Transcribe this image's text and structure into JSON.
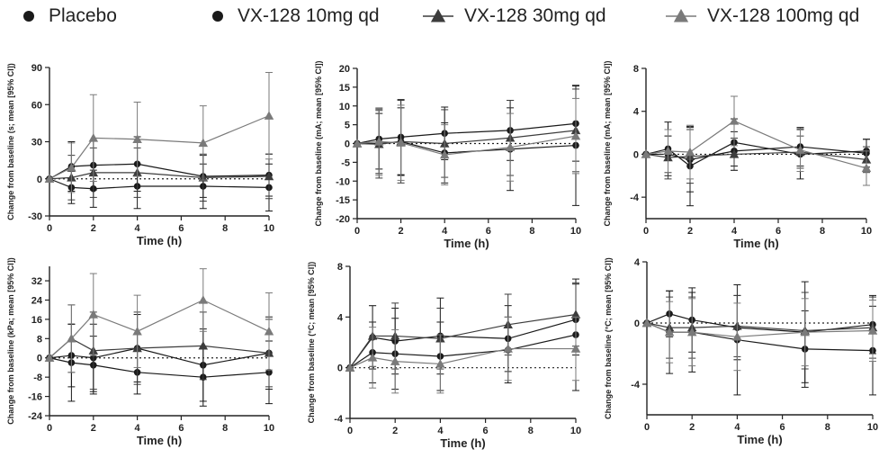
{
  "legend": {
    "items": [
      {
        "label": "Placebo",
        "color": "#1a1a1a",
        "marker": "circle-filled",
        "line": false
      },
      {
        "label": "VX-128 10mg qd",
        "color": "#1a1a1a",
        "marker": "circle-filled",
        "line": false
      },
      {
        "label": "VX-128 30mg qd",
        "color": "#3c3c3c",
        "marker": "triangle",
        "line": true
      },
      {
        "label": "VX-128 100mg qd",
        "color": "#7a7a7a",
        "marker": "triangle",
        "line": true
      }
    ]
  },
  "chart_data": [
    {
      "type": "line",
      "ylabel": "Change from baseline (s; mean [95% CI])",
      "xlabel": "Time (h)",
      "x": [
        0,
        1,
        2,
        4,
        7,
        10
      ],
      "xticks": [
        0,
        2,
        4,
        6,
        8,
        10
      ],
      "yticks": [
        -30,
        0,
        30,
        60,
        90
      ],
      "xlim": [
        0,
        10
      ],
      "ylim": [
        -30,
        90
      ],
      "reference_line": 0,
      "grid": false,
      "series": [
        {
          "color": "#1a1a1a",
          "marker": "circle",
          "values": [
            0,
            -7,
            -8,
            -6,
            -6,
            -7
          ],
          "err": [
            0,
            13,
            15,
            18,
            18,
            19
          ]
        },
        {
          "color": "#1a1a1a",
          "marker": "circle",
          "values": [
            0,
            10,
            11,
            12,
            2,
            3
          ],
          "err": [
            0,
            20,
            20,
            22,
            17,
            17
          ]
        },
        {
          "color": "#3c3c3c",
          "marker": "triangle",
          "values": [
            0,
            1,
            5,
            5,
            1,
            2
          ],
          "err": [
            0,
            18,
            20,
            20,
            19,
            18
          ]
        },
        {
          "color": "#7a7a7a",
          "marker": "triangle",
          "values": [
            0,
            9,
            33,
            32,
            29,
            51
          ],
          "err": [
            0,
            20,
            35,
            30,
            30,
            35
          ]
        }
      ]
    },
    {
      "type": "line",
      "ylabel": "Change from baseline (mA; mean [95% CI])",
      "xlabel": "Time (h)",
      "x": [
        0,
        1,
        2,
        4,
        7,
        10
      ],
      "xticks": [
        0,
        2,
        4,
        6,
        8,
        10
      ],
      "yticks": [
        -20,
        -15,
        -10,
        -5,
        0,
        5,
        10,
        15,
        20
      ],
      "xlim": [
        0,
        10
      ],
      "ylim": [
        -20,
        20
      ],
      "reference_line": 0,
      "grid": false,
      "series": [
        {
          "color": "#1a1a1a",
          "marker": "circle",
          "values": [
            0,
            0,
            0.5,
            -2.5,
            -1.5,
            -0.5
          ],
          "err": [
            0,
            8,
            9,
            8,
            11,
            16
          ]
        },
        {
          "color": "#1a1a1a",
          "marker": "circle",
          "values": [
            0,
            1.2,
            1.7,
            2.7,
            3.5,
            5.3
          ],
          "err": [
            0,
            8,
            10,
            7,
            8,
            10
          ]
        },
        {
          "color": "#3c3c3c",
          "marker": "triangle",
          "values": [
            0,
            -0.2,
            0.5,
            0,
            1.5,
            3.5
          ],
          "err": [
            0,
            9,
            11,
            9,
            10,
            11
          ]
        },
        {
          "color": "#7a7a7a",
          "marker": "triangle",
          "values": [
            0,
            0.5,
            0.2,
            -3,
            -1,
            2
          ],
          "err": [
            0,
            9,
            10,
            8,
            9,
            10
          ]
        }
      ]
    },
    {
      "type": "line",
      "ylabel": "Change from baseline (mA; mean [95% CI])",
      "xlabel": "Time (h)",
      "x": [
        0,
        1,
        2,
        4,
        7,
        10
      ],
      "xticks": [
        0,
        2,
        4,
        6,
        8,
        10
      ],
      "yticks": [
        -4,
        0,
        4,
        8
      ],
      "xlim": [
        0,
        10
      ],
      "ylim": [
        -6,
        8
      ],
      "reference_line": 0,
      "grid": false,
      "series": [
        {
          "color": "#1a1a1a",
          "marker": "circle",
          "values": [
            0,
            0.5,
            -1.1,
            1.1,
            0,
            0.3
          ],
          "err": [
            0,
            2.5,
            3.7,
            2.2,
            2.3,
            1.1
          ]
        },
        {
          "color": "#1a1a1a",
          "marker": "circle",
          "values": [
            0,
            0,
            -0.5,
            0.3,
            0.7,
            0.1
          ],
          "err": [
            0,
            1.7,
            3,
            1.8,
            1.8,
            1.3
          ]
        },
        {
          "color": "#3c3c3c",
          "marker": "triangle",
          "values": [
            0,
            -0.3,
            -0.2,
            0,
            0.2,
            -0.5
          ],
          "err": [
            0,
            2,
            2.5,
            1.5,
            1.5,
            1.2
          ]
        },
        {
          "color": "#7a7a7a",
          "marker": "triangle",
          "values": [
            0,
            0.3,
            0.2,
            3.1,
            0.4,
            -1.3
          ],
          "err": [
            0,
            2,
            2.5,
            2.3,
            2,
            1.6
          ]
        }
      ]
    },
    {
      "type": "line",
      "ylabel": "Change from baseline (kPa; mean [95% CI])",
      "xlabel": "Time (h)",
      "x": [
        0,
        1,
        2,
        4,
        7,
        10
      ],
      "xticks": [
        0,
        2,
        4,
        6,
        8,
        10
      ],
      "yticks": [
        -24,
        -16,
        -8,
        0,
        8,
        16,
        24,
        32
      ],
      "xlim": [
        0,
        10
      ],
      "ylim": [
        -24,
        38
      ],
      "reference_line": 0,
      "grid": false,
      "series": [
        {
          "color": "#1a1a1a",
          "marker": "circle",
          "values": [
            0,
            -2,
            -3,
            -6,
            -8,
            -6
          ],
          "err": [
            0,
            16,
            12,
            9,
            12,
            13
          ]
        },
        {
          "color": "#1a1a1a",
          "marker": "circle",
          "values": [
            0,
            1,
            0,
            4,
            -3,
            2
          ],
          "err": [
            0,
            13,
            14,
            14,
            15,
            15
          ]
        },
        {
          "color": "#3c3c3c",
          "marker": "triangle",
          "values": [
            0,
            8,
            3,
            4,
            5,
            2
          ],
          "err": [
            0,
            14,
            16,
            15,
            14,
            14
          ]
        },
        {
          "color": "#7a7a7a",
          "marker": "triangle",
          "values": [
            0,
            8,
            18,
            11,
            24,
            11
          ],
          "err": [
            0,
            14,
            17,
            15,
            13,
            16
          ]
        }
      ]
    },
    {
      "type": "line",
      "ylabel": "Change from baseline (°C; mean [95% CI])",
      "xlabel": "Time (h)",
      "x": [
        0,
        1,
        2,
        4,
        7,
        10
      ],
      "xticks": [
        0,
        2,
        4,
        6,
        8,
        10
      ],
      "yticks": [
        -4,
        0,
        4,
        8
      ],
      "xlim": [
        0,
        10
      ],
      "ylim": [
        -4,
        8
      ],
      "reference_line": 0,
      "grid": false,
      "series": [
        {
          "color": "#1a1a1a",
          "marker": "circle",
          "values": [
            0,
            1.2,
            1.1,
            0.9,
            1.4,
            2.6
          ],
          "err": [
            0,
            2.4,
            2.8,
            2.7,
            2.6,
            4.4
          ]
        },
        {
          "color": "#1a1a1a",
          "marker": "circle",
          "values": [
            0,
            2.4,
            2.1,
            2.5,
            2.3,
            3.8
          ],
          "err": [
            0,
            2.5,
            2.6,
            3,
            2.6,
            2.8
          ]
        },
        {
          "color": "#3c3c3c",
          "marker": "triangle",
          "values": [
            0,
            2.5,
            2.5,
            2.3,
            3.4,
            4.2
          ],
          "err": [
            0,
            2.4,
            2.6,
            2.4,
            2.4,
            2.5
          ]
        },
        {
          "color": "#7a7a7a",
          "marker": "triangle",
          "values": [
            0,
            0.8,
            0.5,
            0.3,
            1.5,
            1.5
          ],
          "err": [
            0,
            2.4,
            2.5,
            2.3,
            2.5,
            2.5
          ]
        }
      ]
    },
    {
      "type": "line",
      "ylabel": "Change from baseline (°C; mean [95% CI])",
      "xlabel": "Time (h)",
      "x": [
        0,
        1,
        2,
        4,
        7,
        10
      ],
      "xticks": [
        0,
        2,
        4,
        6,
        8,
        10
      ],
      "yticks": [
        -4,
        0,
        4
      ],
      "xlim": [
        0,
        10
      ],
      "ylim": [
        -6,
        4
      ],
      "reference_line": 0,
      "grid": false,
      "series": [
        {
          "color": "#1a1a1a",
          "marker": "circle",
          "values": [
            0,
            -0.6,
            -0.6,
            -1.1,
            -1.7,
            -1.8
          ],
          "err": [
            0,
            2.7,
            2.6,
            3.6,
            2.5,
            2.9
          ]
        },
        {
          "color": "#1a1a1a",
          "marker": "circle",
          "values": [
            0,
            0.6,
            0.2,
            -0.3,
            -0.6,
            -0.1
          ],
          "err": [
            0,
            1.5,
            2.1,
            2.1,
            3.3,
            1.9
          ]
        },
        {
          "color": "#3c3c3c",
          "marker": "triangle",
          "values": [
            0,
            -0.3,
            -0.3,
            -0.2,
            -0.5,
            -0.3
          ],
          "err": [
            0,
            2,
            2,
            2,
            2.5,
            2
          ]
        },
        {
          "color": "#7a7a7a",
          "marker": "triangle",
          "values": [
            0,
            -0.6,
            -0.6,
            -0.9,
            -0.6,
            -0.5
          ],
          "err": [
            0,
            2,
            2.2,
            2.2,
            2.2,
            2
          ]
        }
      ]
    }
  ]
}
